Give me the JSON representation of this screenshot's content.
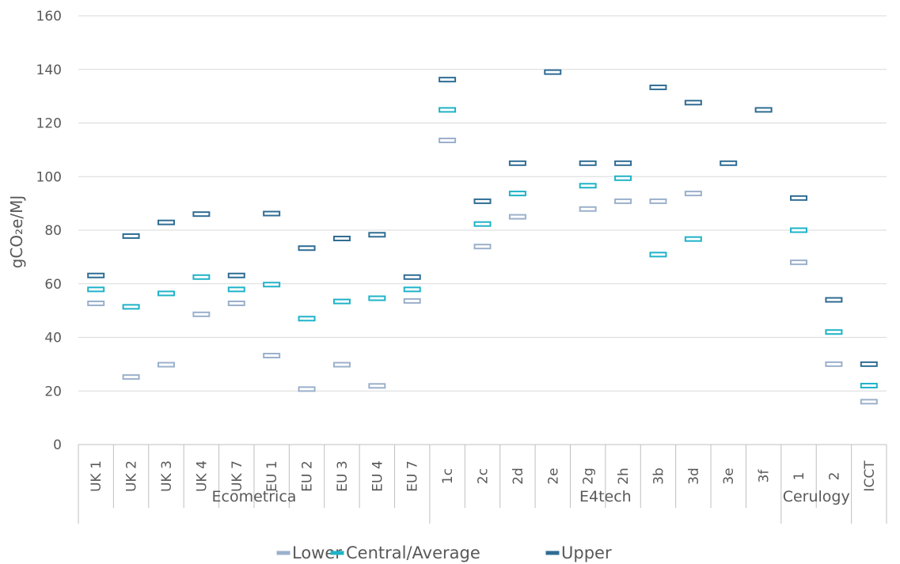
{
  "chart_data": {
    "type": "scatter",
    "ylabel": "gCO₂e/MJ",
    "ylim": [
      0,
      160
    ],
    "yticks": [
      0,
      20,
      40,
      60,
      80,
      100,
      120,
      140,
      160
    ],
    "grid": true,
    "legend_position": "bottom",
    "groups": [
      {
        "name": "Ecometrica",
        "categories": [
          "UK 1",
          "UK 2",
          "UK 3",
          "UK 4",
          "UK 7",
          "EU 1",
          "EU 2",
          "EU 3",
          "EU 4",
          "EU 7"
        ]
      },
      {
        "name": "E4tech",
        "categories": [
          "1c",
          "2c",
          "2d",
          "2e",
          "2g",
          "2h",
          "3b",
          "3d",
          "3e",
          "3f"
        ]
      },
      {
        "name": "Cerulogy",
        "categories": [
          "1",
          "2"
        ]
      },
      {
        "name": "",
        "categories": [
          "ICCT"
        ]
      }
    ],
    "series": [
      {
        "name": "Lower",
        "color": "#9bb0cb",
        "values": [
          52.7,
          25.2,
          29.8,
          48.6,
          52.7,
          33.2,
          20.7,
          29.8,
          21.9,
          53.6,
          113.5,
          73.9,
          85.0,
          null,
          87.9,
          90.8,
          90.8,
          93.7,
          null,
          null,
          68.0,
          30.0,
          16.0
        ]
      },
      {
        "name": "Central/Average",
        "color": "#1fb3c8",
        "values": [
          57.9,
          51.4,
          56.4,
          62.5,
          57.9,
          59.7,
          47.0,
          53.4,
          54.6,
          57.9,
          124.9,
          82.3,
          93.7,
          null,
          96.6,
          99.4,
          70.9,
          76.7,
          null,
          null,
          80.0,
          42.0,
          22.0
        ]
      },
      {
        "name": "Upper",
        "color": "#2f6d94",
        "values": [
          63.1,
          77.8,
          82.9,
          86.0,
          63.1,
          86.2,
          73.3,
          76.9,
          78.3,
          62.5,
          136.2,
          90.8,
          105.0,
          139.0,
          105.0,
          105.0,
          133.3,
          127.6,
          105.0,
          124.9,
          92.0,
          54.0,
          30.0
        ]
      }
    ]
  }
}
